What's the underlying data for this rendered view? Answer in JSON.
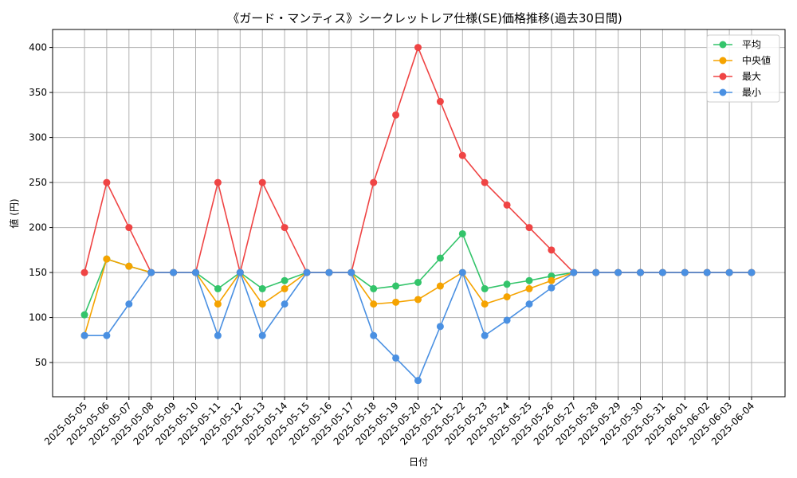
{
  "chart_data": {
    "type": "line",
    "title": "《ガード・マンティス》シークレットレア仕様(SE)価格推移(過去30日間)",
    "xlabel": "日付",
    "ylabel": "値 (円)",
    "ylim": [
      12,
      420
    ],
    "yticks": [
      50,
      100,
      150,
      200,
      250,
      300,
      350,
      400
    ],
    "grid": true,
    "legend_position": "top-right",
    "x": [
      "2025-05-05",
      "2025-05-06",
      "2025-05-07",
      "2025-05-08",
      "2025-05-09",
      "2025-05-10",
      "2025-05-11",
      "2025-05-12",
      "2025-05-13",
      "2025-05-14",
      "2025-05-15",
      "2025-05-16",
      "2025-05-17",
      "2025-05-18",
      "2025-05-19",
      "2025-05-20",
      "2025-05-21",
      "2025-05-22",
      "2025-05-23",
      "2025-05-24",
      "2025-05-25",
      "2025-05-26",
      "2025-05-27",
      "2025-05-28",
      "2025-05-29",
      "2025-05-30",
      "2025-05-31",
      "2025-06-01",
      "2025-06-02",
      "2025-06-03",
      "2025-06-04"
    ],
    "series": [
      {
        "name": "平均",
        "color": "#33c46a",
        "values": [
          103,
          165,
          157,
          150,
          150,
          150,
          132,
          150,
          132,
          141,
          150,
          150,
          150,
          132,
          135,
          139,
          166,
          193,
          132,
          137,
          141,
          146,
          150,
          150,
          150,
          150,
          150,
          150,
          150,
          150,
          150
        ]
      },
      {
        "name": "中央値",
        "color": "#f5a300",
        "values": [
          80,
          165,
          157,
          150,
          150,
          150,
          115,
          150,
          115,
          132,
          150,
          150,
          150,
          115,
          117,
          120,
          135,
          150,
          115,
          123,
          132,
          141,
          150,
          150,
          150,
          150,
          150,
          150,
          150,
          150,
          150
        ]
      },
      {
        "name": "最大",
        "color": "#ef4444",
        "values": [
          150,
          250,
          200,
          150,
          150,
          150,
          250,
          150,
          250,
          200,
          150,
          150,
          150,
          250,
          325,
          400,
          340,
          280,
          250,
          225,
          200,
          175,
          150,
          150,
          150,
          150,
          150,
          150,
          150,
          150,
          150
        ]
      },
      {
        "name": "最小",
        "color": "#4a90e2",
        "values": [
          80,
          80,
          115,
          150,
          150,
          150,
          80,
          150,
          80,
          115,
          150,
          150,
          150,
          80,
          55,
          30,
          90,
          150,
          80,
          97,
          115,
          133,
          150,
          150,
          150,
          150,
          150,
          150,
          150,
          150,
          150
        ]
      }
    ]
  }
}
